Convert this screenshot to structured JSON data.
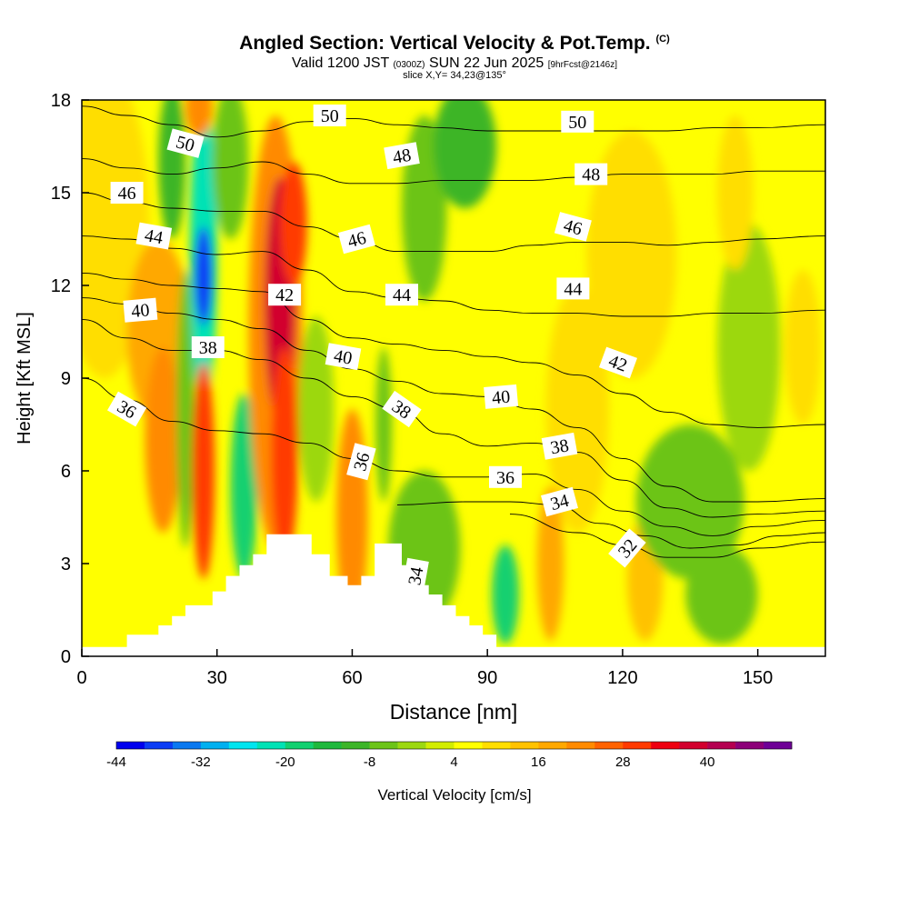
{
  "header": {
    "title": "Angled Section: Vertical Velocity & Pot.Temp.",
    "title_mark": "(C)",
    "valid_prefix": "Valid 1200 JST",
    "valid_utc": "(0300Z)",
    "valid_date": "SUN 22 Jun 2025",
    "forecast": "[9hrFcst@2146z]",
    "slice": "slice X,Y= 34,23@135°"
  },
  "chart_data": {
    "type": "heatmap",
    "title": "Angled Section: Vertical Velocity & Pot.Temp.",
    "xlabel": "Distance [nm]",
    "ylabel": "Height [Kft MSL]",
    "xlim": [
      0,
      165
    ],
    "ylim": [
      0,
      18
    ],
    "xticks": [
      0,
      30,
      60,
      90,
      120,
      150
    ],
    "yticks": [
      0,
      3,
      6,
      9,
      12,
      15,
      18
    ],
    "colorbar": {
      "label": "Vertical Velocity [cm/s]",
      "ticks": [
        -44,
        -32,
        -20,
        -8,
        4,
        16,
        28,
        40
      ],
      "levels": [
        -44,
        -40,
        -36,
        -32,
        -28,
        -24,
        -20,
        -16,
        -12,
        -8,
        -4,
        0,
        4,
        8,
        12,
        16,
        20,
        24,
        28,
        32,
        36,
        40,
        44,
        48
      ],
      "colors": [
        "#0000ee",
        "#0b3cf5",
        "#0a78f0",
        "#00b0f0",
        "#00e5ef",
        "#00e2b5",
        "#12d070",
        "#1eb83c",
        "#3cb528",
        "#6cc418",
        "#9cd810",
        "#d2ec00",
        "#ffff00",
        "#ffde00",
        "#ffc200",
        "#ffa800",
        "#ff8a00",
        "#ff6200",
        "#ff3a00",
        "#ee0010",
        "#d2002e",
        "#b40050",
        "#8c0078",
        "#6e0096"
      ]
    },
    "terrain": [
      [
        0,
        0.3
      ],
      [
        10,
        0.3
      ],
      [
        10,
        0.7
      ],
      [
        17,
        0.7
      ],
      [
        17,
        1
      ],
      [
        20,
        1
      ],
      [
        20,
        1.3
      ],
      [
        23,
        1.3
      ],
      [
        23,
        1.65
      ],
      [
        29,
        1.65
      ],
      [
        29,
        2.1
      ],
      [
        32,
        2.1
      ],
      [
        32,
        2.6
      ],
      [
        35,
        2.6
      ],
      [
        35,
        2.95
      ],
      [
        38,
        2.95
      ],
      [
        38,
        3.3
      ],
      [
        41,
        3.3
      ],
      [
        41,
        3.95
      ],
      [
        51,
        3.95
      ],
      [
        51,
        3.3
      ],
      [
        55,
        3.3
      ],
      [
        55,
        2.6
      ],
      [
        59,
        2.6
      ],
      [
        59,
        2.3
      ],
      [
        62,
        2.3
      ],
      [
        62,
        2.6
      ],
      [
        65,
        2.6
      ],
      [
        65,
        3.65
      ],
      [
        71,
        3.65
      ],
      [
        71,
        2.95
      ],
      [
        74,
        2.95
      ],
      [
        74,
        2.3
      ],
      [
        77,
        2.3
      ],
      [
        77,
        2
      ],
      [
        80,
        2
      ],
      [
        80,
        1.65
      ],
      [
        83,
        1.65
      ],
      [
        83,
        1.3
      ],
      [
        86,
        1.3
      ],
      [
        86,
        1
      ],
      [
        89,
        1
      ],
      [
        89,
        0.7
      ],
      [
        92,
        0.7
      ],
      [
        92,
        0.3
      ],
      [
        165,
        0.3
      ]
    ],
    "blobs": [
      {
        "cx": 5,
        "cy": 14,
        "rx": 10,
        "ry": 5,
        "v": 8
      },
      {
        "cx": 17,
        "cy": 10.5,
        "rx": 7,
        "ry": 3,
        "v": 18
      },
      {
        "cx": 18,
        "cy": 7,
        "rx": 4,
        "ry": 3,
        "v": 20
      },
      {
        "cx": 20,
        "cy": 16,
        "rx": 3,
        "ry": 2.5,
        "v": -10
      },
      {
        "cx": 23,
        "cy": 8,
        "rx": 2,
        "ry": 4.5,
        "v": -8
      },
      {
        "cx": 27,
        "cy": 13,
        "rx": 3,
        "ry": 5,
        "v": -22
      },
      {
        "cx": 27,
        "cy": 12.3,
        "rx": 2,
        "ry": 1.6,
        "v": -40
      },
      {
        "cx": 27,
        "cy": 6,
        "rx": 2.5,
        "ry": 3.5,
        "v": 28
      },
      {
        "cx": 26,
        "cy": 17.8,
        "rx": 3,
        "ry": 1,
        "v": 20
      },
      {
        "cx": 36,
        "cy": 5.5,
        "rx": 3,
        "ry": 3,
        "v": -18
      },
      {
        "cx": 33,
        "cy": 16,
        "rx": 4,
        "ry": 2.5,
        "v": -8
      },
      {
        "cx": 43,
        "cy": 10.5,
        "rx": 6,
        "ry": 7,
        "v": 20
      },
      {
        "cx": 44,
        "cy": 11.5,
        "rx": 3.5,
        "ry": 4,
        "v": 36
      },
      {
        "cx": 45,
        "cy": 6.5,
        "rx": 3,
        "ry": 3.5,
        "v": 28
      },
      {
        "cx": 47,
        "cy": 14,
        "rx": 3,
        "ry": 2,
        "v": 28
      },
      {
        "cx": 52,
        "cy": 8,
        "rx": 4,
        "ry": 3,
        "v": -4
      },
      {
        "cx": 60,
        "cy": 4.5,
        "rx": 3.5,
        "ry": 3.5,
        "v": 22
      },
      {
        "cx": 67,
        "cy": 7.5,
        "rx": 1.8,
        "ry": 2.5,
        "v": -8
      },
      {
        "cx": 76,
        "cy": 14.5,
        "rx": 5,
        "ry": 3,
        "v": -8
      },
      {
        "cx": 76,
        "cy": 3.5,
        "rx": 8,
        "ry": 2.5,
        "v": -6
      },
      {
        "cx": 85,
        "cy": 16.5,
        "rx": 7,
        "ry": 2,
        "v": -12
      },
      {
        "cx": 94,
        "cy": 2,
        "rx": 3,
        "ry": 1.6,
        "v": -18
      },
      {
        "cx": 110,
        "cy": 8,
        "rx": 7,
        "ry": 4,
        "v": 8
      },
      {
        "cx": 104,
        "cy": 3,
        "rx": 3,
        "ry": 2.5,
        "v": 16
      },
      {
        "cx": 122,
        "cy": 13,
        "rx": 10,
        "ry": 4,
        "v": 8
      },
      {
        "cx": 125,
        "cy": 2.5,
        "rx": 4,
        "ry": 2,
        "v": 12
      },
      {
        "cx": 135,
        "cy": 5,
        "rx": 12,
        "ry": 2.5,
        "v": -6
      },
      {
        "cx": 142,
        "cy": 2,
        "rx": 8,
        "ry": 1.6,
        "v": -6
      },
      {
        "cx": 148,
        "cy": 10,
        "rx": 7,
        "ry": 4,
        "v": -4
      },
      {
        "cx": 145,
        "cy": 15,
        "rx": 4,
        "ry": 2.5,
        "v": 8
      },
      {
        "cx": 160,
        "cy": 10,
        "rx": 4,
        "ry": 2.5,
        "v": 10
      },
      {
        "cx": 160,
        "cy": 5,
        "rx": 4,
        "ry": 2,
        "v": 4
      }
    ],
    "isentropes": [
      {
        "theta": 32,
        "pts": [
          [
            95,
            4.6
          ],
          [
            110,
            4.0
          ],
          [
            120,
            3.6
          ],
          [
            130,
            3.2
          ],
          [
            140,
            3.2
          ],
          [
            150,
            3.5
          ],
          [
            165,
            3.7
          ]
        ]
      },
      {
        "theta": 34,
        "pts": [
          [
            70,
            4.9
          ],
          [
            85,
            5.0
          ],
          [
            95,
            5.0
          ],
          [
            105,
            4.9
          ],
          [
            115,
            4.3
          ],
          [
            125,
            3.9
          ],
          [
            135,
            3.5
          ],
          [
            145,
            3.6
          ],
          [
            155,
            3.9
          ],
          [
            165,
            4.0
          ]
        ]
      },
      {
        "theta": 36,
        "pts": [
          [
            0,
            9.0
          ],
          [
            10,
            8.3
          ],
          [
            20,
            7.6
          ],
          [
            30,
            7.3
          ],
          [
            40,
            7.2
          ],
          [
            50,
            6.9
          ],
          [
            60,
            6.4
          ],
          [
            70,
            6.0
          ],
          [
            80,
            5.8
          ],
          [
            90,
            5.8
          ],
          [
            100,
            5.9
          ],
          [
            110,
            5.4
          ],
          [
            120,
            4.7
          ],
          [
            130,
            4.2
          ],
          [
            140,
            3.9
          ],
          [
            150,
            4.2
          ],
          [
            165,
            4.4
          ]
        ]
      },
      {
        "theta": 38,
        "pts": [
          [
            0,
            10.9
          ],
          [
            10,
            10.3
          ],
          [
            20,
            9.9
          ],
          [
            30,
            9.9
          ],
          [
            40,
            9.6
          ],
          [
            50,
            9.0
          ],
          [
            60,
            8.4
          ],
          [
            70,
            8.0
          ],
          [
            80,
            7.2
          ],
          [
            90,
            6.8
          ],
          [
            100,
            6.9
          ],
          [
            110,
            6.6
          ],
          [
            120,
            5.7
          ],
          [
            130,
            4.8
          ],
          [
            140,
            4.5
          ],
          [
            150,
            4.6
          ],
          [
            165,
            4.7
          ]
        ]
      },
      {
        "theta": 40,
        "pts": [
          [
            0,
            11.6
          ],
          [
            10,
            11.4
          ],
          [
            20,
            11.1
          ],
          [
            30,
            10.9
          ],
          [
            40,
            10.6
          ],
          [
            50,
            9.9
          ],
          [
            60,
            9.3
          ],
          [
            70,
            8.9
          ],
          [
            80,
            8.5
          ],
          [
            90,
            8.4
          ],
          [
            100,
            8.0
          ],
          [
            110,
            7.4
          ],
          [
            120,
            6.4
          ],
          [
            130,
            5.5
          ],
          [
            140,
            5.0
          ],
          [
            150,
            5.0
          ],
          [
            165,
            5.1
          ]
        ]
      },
      {
        "theta": 42,
        "pts": [
          [
            0,
            12.4
          ],
          [
            10,
            12.2
          ],
          [
            20,
            12.0
          ],
          [
            30,
            11.9
          ],
          [
            40,
            11.8
          ],
          [
            50,
            10.9
          ],
          [
            60,
            10.3
          ],
          [
            70,
            10.1
          ],
          [
            80,
            9.9
          ],
          [
            90,
            9.7
          ],
          [
            100,
            9.5
          ],
          [
            110,
            9.1
          ],
          [
            120,
            8.5
          ],
          [
            130,
            7.9
          ],
          [
            140,
            7.5
          ],
          [
            150,
            7.4
          ],
          [
            165,
            7.5
          ]
        ]
      },
      {
        "theta": 44,
        "pts": [
          [
            0,
            13.6
          ],
          [
            10,
            13.5
          ],
          [
            20,
            13.2
          ],
          [
            30,
            13.0
          ],
          [
            40,
            13.1
          ],
          [
            50,
            12.5
          ],
          [
            60,
            11.8
          ],
          [
            70,
            11.6
          ],
          [
            80,
            11.5
          ],
          [
            90,
            11.2
          ],
          [
            100,
            11.1
          ],
          [
            110,
            11.1
          ],
          [
            120,
            11.0
          ],
          [
            130,
            11.0
          ],
          [
            140,
            11.1
          ],
          [
            150,
            11.1
          ],
          [
            165,
            11.2
          ]
        ]
      },
      {
        "theta": 46,
        "pts": [
          [
            0,
            15.0
          ],
          [
            10,
            14.7
          ],
          [
            20,
            14.5
          ],
          [
            30,
            14.4
          ],
          [
            40,
            14.4
          ],
          [
            50,
            13.9
          ],
          [
            60,
            13.5
          ],
          [
            70,
            13.1
          ],
          [
            80,
            13.1
          ],
          [
            90,
            13.1
          ],
          [
            100,
            13.3
          ],
          [
            110,
            13.4
          ],
          [
            120,
            13.4
          ],
          [
            130,
            13.3
          ],
          [
            140,
            13.4
          ],
          [
            150,
            13.5
          ],
          [
            165,
            13.6
          ]
        ]
      },
      {
        "theta": 48,
        "pts": [
          [
            0,
            16.1
          ],
          [
            10,
            15.8
          ],
          [
            20,
            15.6
          ],
          [
            30,
            15.8
          ],
          [
            40,
            16.0
          ],
          [
            50,
            15.6
          ],
          [
            60,
            15.3
          ],
          [
            70,
            15.3
          ],
          [
            80,
            15.4
          ],
          [
            90,
            15.4
          ],
          [
            100,
            15.4
          ],
          [
            110,
            15.5
          ],
          [
            120,
            15.6
          ],
          [
            130,
            15.6
          ],
          [
            140,
            15.6
          ],
          [
            150,
            15.7
          ],
          [
            165,
            15.7
          ]
        ]
      },
      {
        "theta": 50,
        "pts": [
          [
            0,
            17.8
          ],
          [
            10,
            17.5
          ],
          [
            20,
            17.2
          ],
          [
            30,
            16.8
          ],
          [
            40,
            17.0
          ],
          [
            50,
            17.3
          ],
          [
            60,
            17.4
          ],
          [
            70,
            17.2
          ],
          [
            80,
            17.1
          ],
          [
            90,
            17.0
          ],
          [
            100,
            17.0
          ],
          [
            110,
            17.0
          ],
          [
            120,
            17.0
          ],
          [
            130,
            17.0
          ],
          [
            140,
            17.1
          ],
          [
            150,
            17.1
          ],
          [
            165,
            17.2
          ]
        ]
      }
    ],
    "contour_labels": [
      {
        "text": "50",
        "x": 55,
        "y": 17.5,
        "rot": 0
      },
      {
        "text": "50",
        "x": 110,
        "y": 17.3,
        "rot": 0
      },
      {
        "text": "50",
        "x": 23,
        "y": 16.6,
        "rot": 15
      },
      {
        "text": "48",
        "x": 71,
        "y": 16.2,
        "rot": -10
      },
      {
        "text": "48",
        "x": 113,
        "y": 15.6,
        "rot": 0
      },
      {
        "text": "46",
        "x": 10,
        "y": 15.0,
        "rot": 0
      },
      {
        "text": "46",
        "x": 61,
        "y": 13.5,
        "rot": -15
      },
      {
        "text": "46",
        "x": 109,
        "y": 13.9,
        "rot": 15
      },
      {
        "text": "44",
        "x": 16,
        "y": 13.6,
        "rot": 10
      },
      {
        "text": "44",
        "x": 71,
        "y": 11.7,
        "rot": 0
      },
      {
        "text": "44",
        "x": 109,
        "y": 11.9,
        "rot": 0
      },
      {
        "text": "42",
        "x": 45,
        "y": 11.7,
        "rot": 0
      },
      {
        "text": "42",
        "x": 119,
        "y": 9.5,
        "rot": 20
      },
      {
        "text": "40",
        "x": 13,
        "y": 11.2,
        "rot": -5
      },
      {
        "text": "40",
        "x": 58,
        "y": 9.7,
        "rot": 10
      },
      {
        "text": "40",
        "x": 93,
        "y": 8.4,
        "rot": -5
      },
      {
        "text": "38",
        "x": 28,
        "y": 10.0,
        "rot": 0
      },
      {
        "text": "38",
        "x": 71,
        "y": 8.0,
        "rot": 35
      },
      {
        "text": "38",
        "x": 106,
        "y": 6.8,
        "rot": -10
      },
      {
        "text": "36",
        "x": 10,
        "y": 8.0,
        "rot": 30
      },
      {
        "text": "36",
        "x": 62,
        "y": 6.3,
        "rot": -75
      },
      {
        "text": "36",
        "x": 94,
        "y": 5.8,
        "rot": 0
      },
      {
        "text": "34",
        "x": 106,
        "y": 5.0,
        "rot": -15
      },
      {
        "text": "34",
        "x": 74,
        "y": 2.6,
        "rot": -80
      },
      {
        "text": "32",
        "x": 121,
        "y": 3.5,
        "rot": -50
      }
    ]
  }
}
